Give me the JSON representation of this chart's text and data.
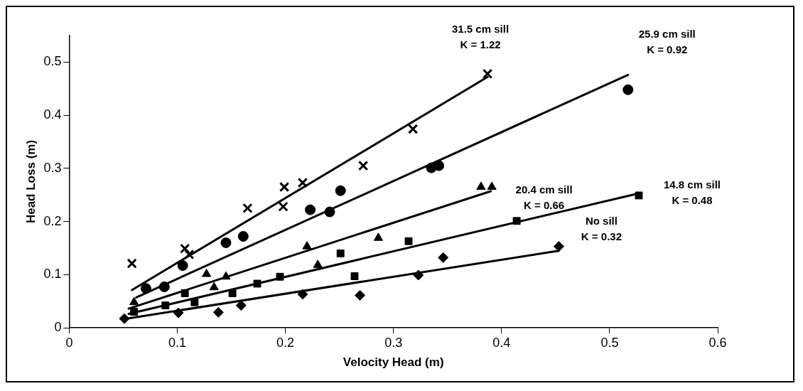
{
  "chart_data": {
    "type": "scatter",
    "xlabel": "Velocity Head (m)",
    "ylabel": "Head Loss (m)",
    "xlim": [
      0,
      0.6
    ],
    "xticks": [
      0,
      0.1,
      0.2,
      0.3,
      0.4,
      0.5,
      0.6
    ],
    "ylim": [
      0,
      0.55
    ],
    "yticks": [
      0,
      0.1,
      0.2,
      0.3,
      0.4,
      0.5
    ],
    "grid": false,
    "legend": false,
    "series": [
      {
        "type": "scatter",
        "marker": "cross",
        "color": "#000000",
        "x": [
          0.058,
          0.107,
          0.111,
          0.165,
          0.198,
          0.199,
          0.216,
          0.272,
          0.318,
          0.387
        ],
        "values": [
          0.121,
          0.149,
          0.138,
          0.225,
          0.228,
          0.265,
          0.273,
          0.305,
          0.374,
          0.478
        ]
      },
      {
        "type": "scatter",
        "marker": "circle",
        "color": "#000000",
        "x": [
          0.071,
          0.088,
          0.105,
          0.145,
          0.161,
          0.223,
          0.241,
          0.251,
          0.335,
          0.342,
          0.517
        ],
        "values": [
          0.074,
          0.077,
          0.117,
          0.16,
          0.172,
          0.222,
          0.218,
          0.258,
          0.301,
          0.305,
          0.448
        ]
      },
      {
        "type": "scatter",
        "marker": "triangle",
        "color": "#000000",
        "x": [
          0.06,
          0.127,
          0.134,
          0.145,
          0.22,
          0.23,
          0.286,
          0.381,
          0.391
        ],
        "values": [
          0.048,
          0.101,
          0.076,
          0.096,
          0.153,
          0.118,
          0.169,
          0.265,
          0.265
        ]
      },
      {
        "type": "scatter",
        "marker": "square",
        "color": "#000000",
        "x": [
          0.06,
          0.089,
          0.107,
          0.116,
          0.151,
          0.174,
          0.195,
          0.251,
          0.264,
          0.314,
          0.414,
          0.527
        ],
        "values": [
          0.03,
          0.042,
          0.065,
          0.048,
          0.065,
          0.083,
          0.096,
          0.14,
          0.097,
          0.163,
          0.201,
          0.249
        ]
      },
      {
        "type": "scatter",
        "marker": "diamond",
        "color": "#000000",
        "x": [
          0.051,
          0.058,
          0.101,
          0.138,
          0.159,
          0.216,
          0.269,
          0.323,
          0.346,
          0.453
        ],
        "values": [
          0.017,
          null,
          0.028,
          0.029,
          0.042,
          0.063,
          0.061,
          0.099,
          0.132,
          0.153
        ]
      },
      {
        "type": "line",
        "color": "#000000",
        "x": [
          0.058,
          0.387
        ],
        "values": [
          0.071,
          0.472
        ]
      },
      {
        "type": "line",
        "color": "#000000",
        "x": [
          0.062,
          0.517
        ],
        "values": [
          0.057,
          0.476
        ]
      },
      {
        "type": "line",
        "color": "#000000",
        "x": [
          0.055,
          0.39
        ],
        "values": [
          0.036,
          0.257
        ]
      },
      {
        "type": "line",
        "color": "#000000",
        "x": [
          0.055,
          0.527
        ],
        "values": [
          0.026,
          0.253
        ]
      },
      {
        "type": "line",
        "color": "#000000",
        "x": [
          0.05,
          0.453
        ],
        "values": [
          0.016,
          0.145
        ]
      }
    ],
    "annotations": [
      "31.5 cm sill\nK = 1.22",
      "25.9 cm sill\nK = 0.92",
      "20.4 cm sill\nK = 0.66",
      "14.8 cm sill\nK = 0.48",
      "No sill\nK = 0.32"
    ]
  }
}
